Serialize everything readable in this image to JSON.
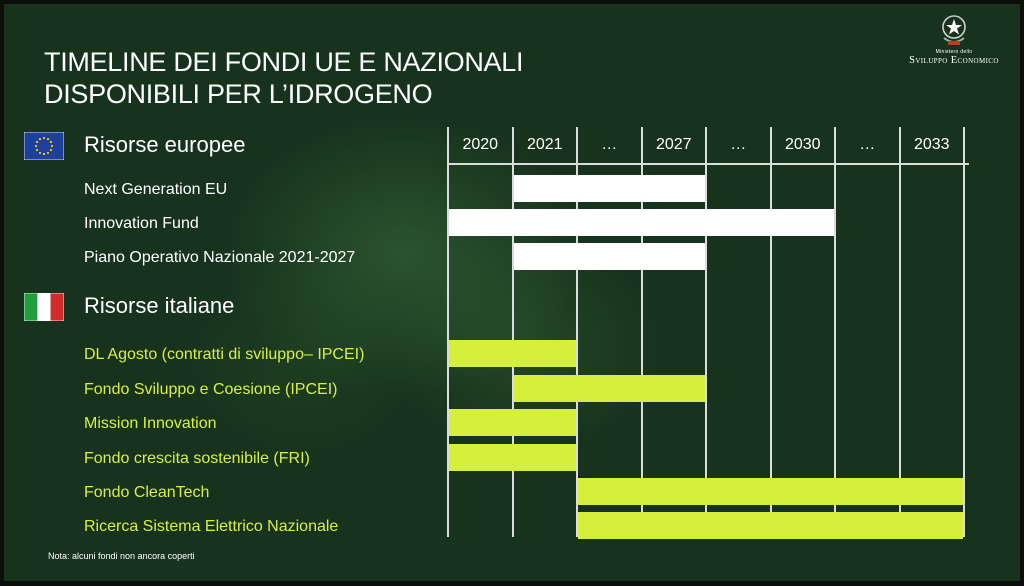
{
  "title_lines": [
    "TIMELINE DEI FONDI UE E NAZIONALI",
    "DISPONIBILI PER L’IDROGENO"
  ],
  "logo": {
    "line1": "Ministero dello",
    "line2": "Sviluppo Economico"
  },
  "colors": {
    "background": "#17331e",
    "eu_bar": "#ffffff",
    "it_bar": "#d6ef3c",
    "it_text": "#d9f03e",
    "eu_flag_blue": "#1f3f9c",
    "eu_flag_star": "#f5d000",
    "it_green": "#1f9e3a",
    "it_white": "#ffffff",
    "it_red": "#d32a2a",
    "gridline": "#dcdcdc"
  },
  "timeline": {
    "columns": [
      "2020",
      "2021",
      "…",
      "2027",
      "…",
      "2030",
      "…",
      "2033"
    ]
  },
  "eu": {
    "flag_icon": "eu-flag-icon",
    "title": "Risorse europee",
    "funds": [
      {
        "label": "Next Generation EU",
        "start": 1,
        "end": 3
      },
      {
        "label": "Innovation Fund",
        "start": 0,
        "end": 5
      },
      {
        "label": "Piano Operativo Nazionale 2021-2027",
        "start": 1,
        "end": 3
      }
    ]
  },
  "italy": {
    "flag_icon": "italy-flag-icon",
    "title": "Risorse italiane",
    "funds": [
      {
        "label": "DL Agosto (contratti di sviluppo– IPCEI)",
        "start": 0,
        "end": 1
      },
      {
        "label": "Fondo Sviluppo e Coesione (IPCEI)",
        "start": 1,
        "end": 3
      },
      {
        "label": "Mission Innovation",
        "start": 0,
        "end": 1
      },
      {
        "label": "Fondo crescita sostenibile (FRI)",
        "start": 0,
        "end": 1
      },
      {
        "label": "Fondo CleanTech",
        "start": 2,
        "end": 7
      },
      {
        "label": "Ricerca Sistema Elettrico Nazionale",
        "start": 2,
        "end": 7
      }
    ]
  },
  "note": "Nota: alcuni fondi non ancora coperti"
}
